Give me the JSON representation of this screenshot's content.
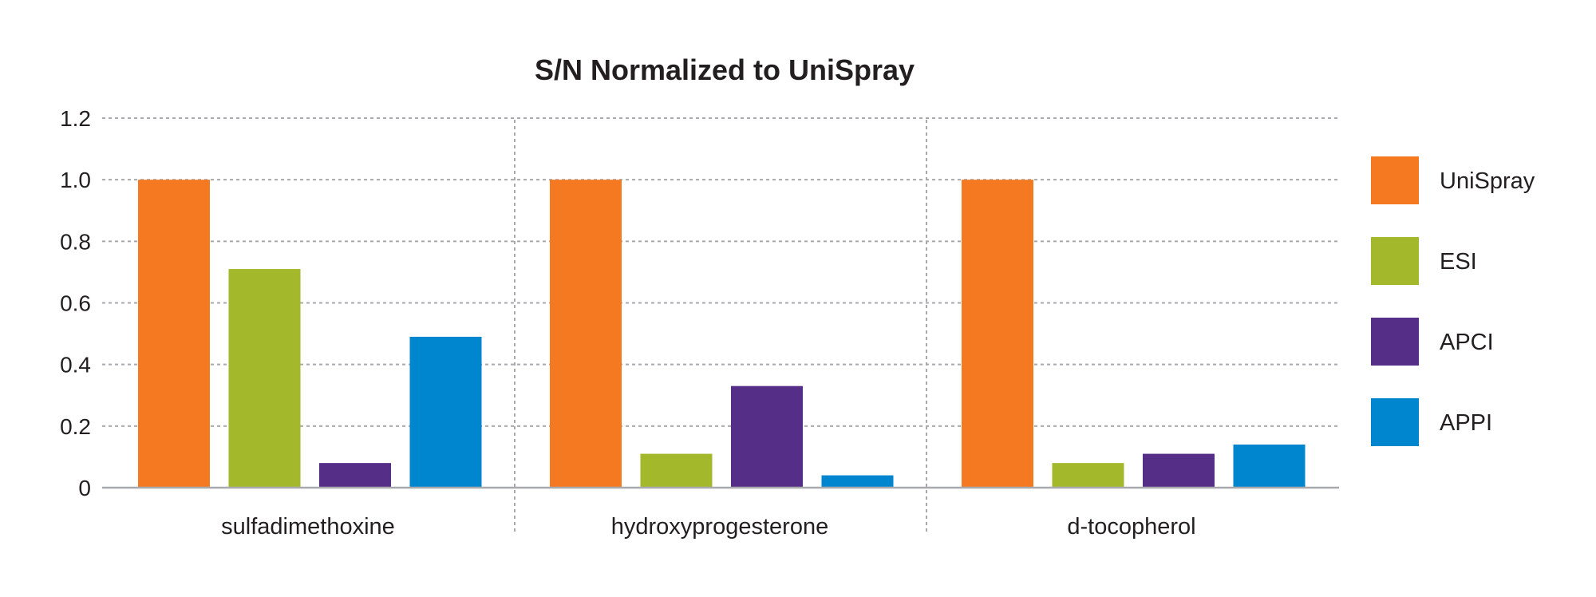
{
  "chart_data": {
    "type": "bar",
    "title": "S/N Normalized to UniSpray",
    "xlabel": "",
    "ylabel": "",
    "categories": [
      "sulfadimethoxine",
      "hydroxyprogesterone",
      "d-tocopherol"
    ],
    "ylim": [
      0,
      1.2
    ],
    "yticks": [
      0,
      0.2,
      0.4,
      0.6,
      0.8,
      1.0,
      1.2
    ],
    "ytick_labels": [
      "0",
      "0.2",
      "0.4",
      "0.6",
      "0.8",
      "1.0",
      "1.2"
    ],
    "grid": true,
    "legend_position": "right",
    "series": [
      {
        "name": "UniSpray",
        "color": "#f47920",
        "values": [
          1.0,
          1.0,
          1.0
        ]
      },
      {
        "name": "ESI",
        "color": "#a4b82c",
        "values": [
          0.71,
          0.11,
          0.08
        ]
      },
      {
        "name": "APCI",
        "color": "#542e87",
        "values": [
          0.08,
          0.33,
          0.11
        ]
      },
      {
        "name": "APPI",
        "color": "#0086ce",
        "values": [
          0.49,
          0.04,
          0.14
        ]
      }
    ]
  }
}
